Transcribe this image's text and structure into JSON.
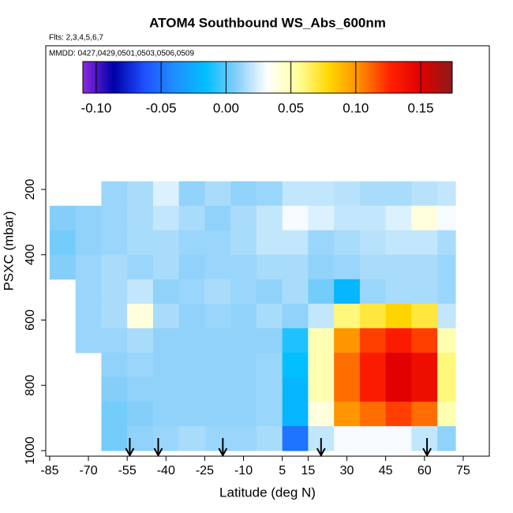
{
  "chart_data": {
    "type": "curtain",
    "title": "ATOM4 Southbound WS_Abs_600nm",
    "subtitle": "Flts: 2,3,4,5,6,7",
    "annotation": "MMDD: 0427,0429,0501,0503,0506,0509",
    "xlabel": "Latitude (deg N)",
    "ylabel": "PSXC (mbar)",
    "xlim": [
      -86.5,
      85.1
    ],
    "ylim": [
      -240,
      1017
    ],
    "xticks": [
      -85,
      -70,
      -55,
      -40,
      -25,
      -10,
      5,
      15,
      30,
      45,
      60,
      75
    ],
    "yticks": [
      200,
      400,
      600,
      800,
      1000
    ],
    "clim": [
      -0.1103,
      0.1743
    ],
    "cticks": [
      {
        "value": -0.1,
        "label": "-0.10"
      },
      {
        "value": -0.05,
        "label": "-0.05"
      },
      {
        "value": 0,
        "label": "0.00"
      },
      {
        "value": 0.05,
        "label": "0.05"
      },
      {
        "value": 0.1,
        "label": "0.10"
      },
      {
        "value": 0.15,
        "label": "0.15"
      }
    ],
    "colors": [
      "#8a2be2",
      "#0000a8",
      "#1e50ff",
      "#1e90ff",
      "#00bfff",
      "#87cefa",
      "#ffffff",
      "#ffff99",
      "#ffd700",
      "#ff8c00",
      "#ff2000",
      "#e00000",
      "#8b1a1a"
    ],
    "lat_edges": [
      -85,
      -75,
      -65,
      -55,
      -45,
      -35,
      -25,
      -15,
      -5,
      5,
      15,
      25,
      35,
      45,
      55,
      65,
      72
    ],
    "p_edges": [
      175,
      250,
      325,
      400,
      475,
      550,
      625,
      700,
      775,
      850,
      925,
      1000
    ],
    "values": [
      [
        null,
        null,
        0.012,
        0.015,
        0.025,
        0.01,
        0.015,
        0.01,
        0.012,
        0.02,
        0.02,
        0.018,
        0.015,
        0.015,
        0.018,
        0.02
      ],
      [
        0.008,
        0.01,
        0.012,
        0.015,
        0.02,
        0.015,
        0.01,
        0.015,
        0.02,
        0.03,
        0.025,
        0.02,
        0.02,
        0.025,
        0.04,
        0.03
      ],
      [
        0.005,
        0.01,
        0.012,
        0.015,
        0.015,
        0.012,
        0.012,
        0.015,
        0.02,
        0.02,
        0.012,
        0.015,
        0.018,
        0.02,
        0.02,
        0.015
      ],
      [
        0.008,
        0.012,
        0.015,
        0.012,
        0.015,
        0.01,
        0.012,
        0.012,
        0.015,
        0.015,
        0.01,
        0.012,
        0.015,
        0.015,
        0.015,
        0.012
      ],
      [
        null,
        0.012,
        0.015,
        0.02,
        0.01,
        0.012,
        0.015,
        0.012,
        0.01,
        0.015,
        0.005,
        -0.02,
        0.012,
        0.015,
        0.015,
        0.012
      ],
      [
        null,
        0.012,
        0.015,
        0.04,
        0.015,
        0.01,
        0.012,
        0.01,
        0.015,
        0.01,
        0.02,
        0.06,
        0.07,
        0.08,
        0.07,
        0.02
      ],
      [
        null,
        0.012,
        0.012,
        0.015,
        0.01,
        0.01,
        0.01,
        0.01,
        0.01,
        -0.01,
        0.05,
        0.1,
        0.12,
        0.13,
        0.12,
        0.05
      ],
      [
        null,
        null,
        0.01,
        0.012,
        0.01,
        0.01,
        0.01,
        0.01,
        0.012,
        -0.015,
        0.05,
        0.11,
        0.13,
        0.15,
        0.14,
        0.06
      ],
      [
        null,
        null,
        0.008,
        0.01,
        0.01,
        0.01,
        0.01,
        0.01,
        0.012,
        -0.02,
        0.05,
        0.11,
        0.13,
        0.15,
        0.14,
        0.06
      ],
      [
        null,
        null,
        0.005,
        0.008,
        0.01,
        0.01,
        0.01,
        0.01,
        0.012,
        -0.02,
        0.04,
        0.1,
        0.11,
        0.12,
        0.11,
        0.05
      ],
      [
        null,
        null,
        0.005,
        0.01,
        0.012,
        0.015,
        0.012,
        0.012,
        0.015,
        -0.05,
        0.02,
        0.03,
        0.03,
        0.03,
        0.02,
        0.01
      ]
    ],
    "arrows": [
      -54,
      -43,
      -18,
      20,
      61
    ]
  }
}
